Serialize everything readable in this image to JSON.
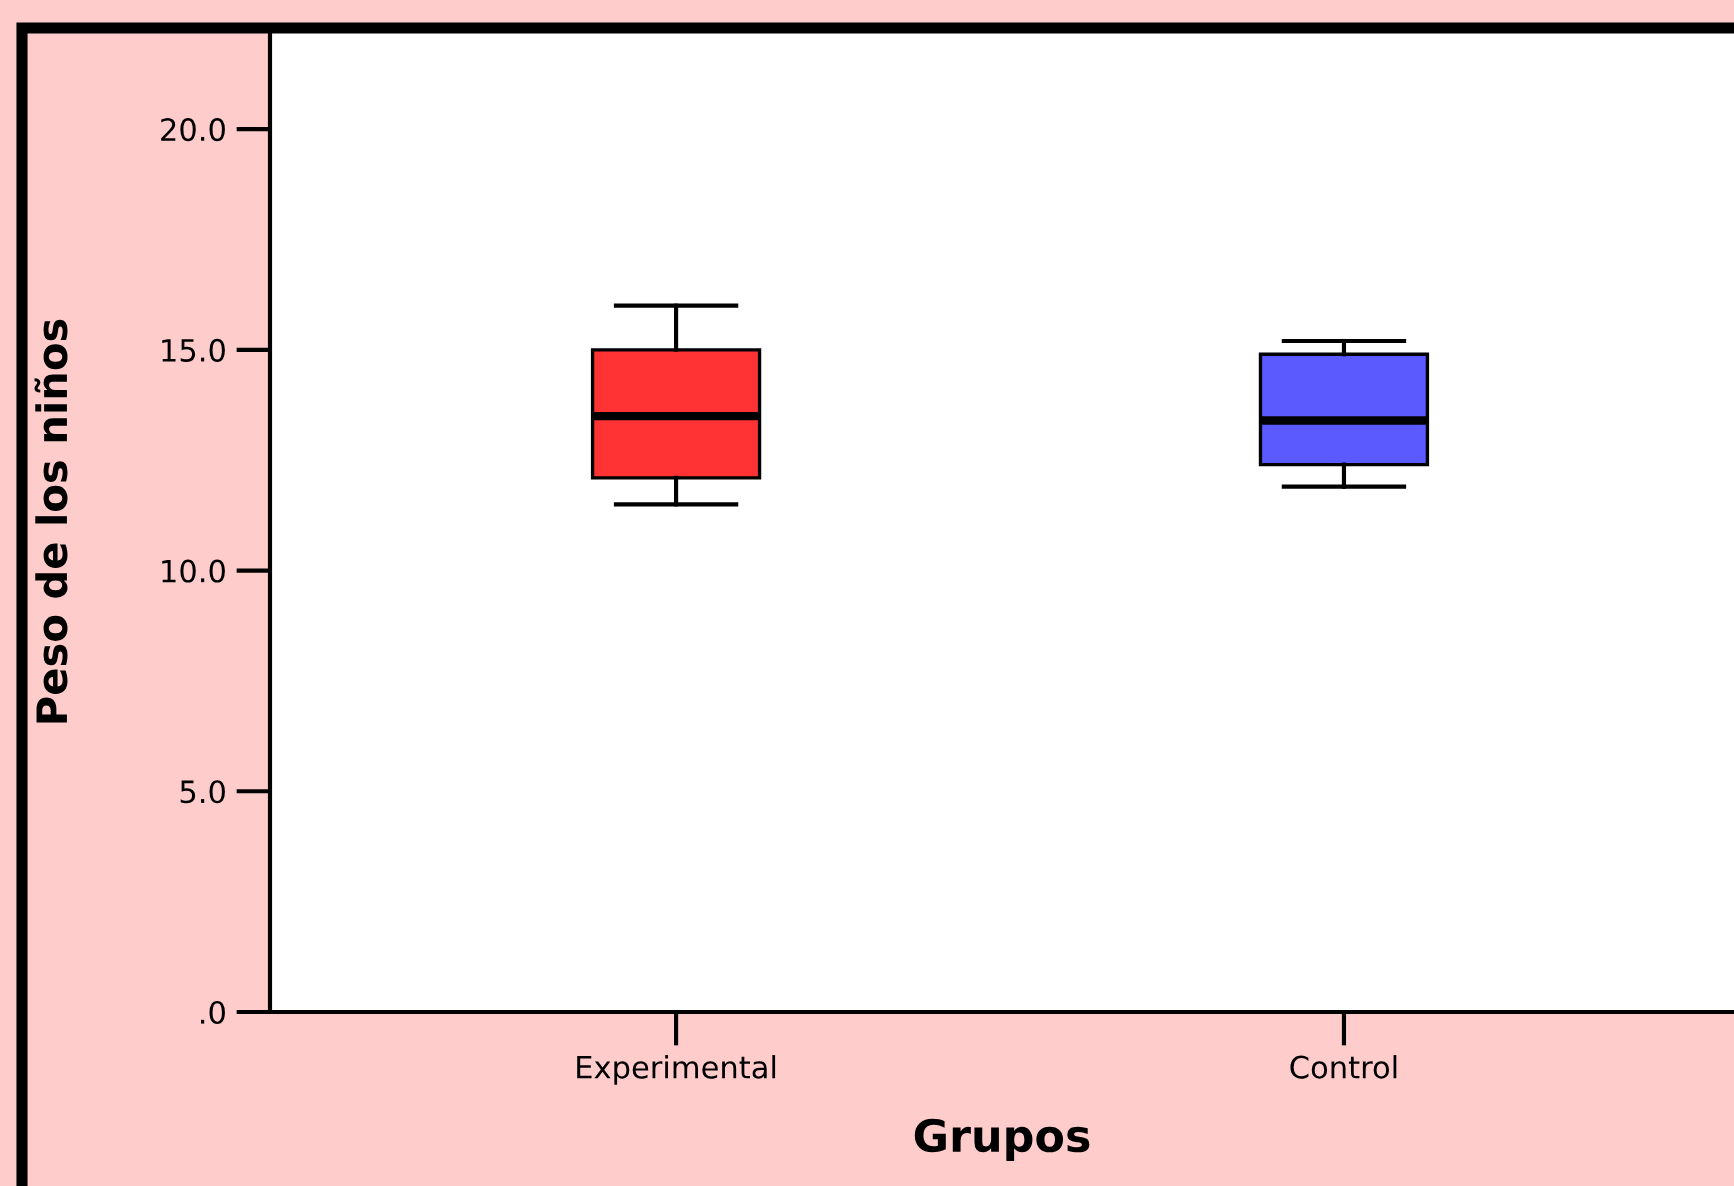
{
  "chart_data": {
    "type": "box",
    "xlabel": "Grupos",
    "ylabel": "Peso de los niños",
    "categories": [
      "Experimental",
      "Control"
    ],
    "boxes": [
      {
        "low": 11.5,
        "q1": 12.1,
        "median": 13.5,
        "q3": 15.0,
        "high": 16.0
      },
      {
        "low": 11.9,
        "q1": 12.4,
        "median": 13.4,
        "q3": 14.9,
        "high": 15.2
      }
    ],
    "colors": [
      "#ff3333",
      "#5a5aff"
    ],
    "ylim": [
      0,
      22.2
    ],
    "yticks": [
      {
        "value": 0,
        "label": ".0"
      },
      {
        "value": 5,
        "label": "5.0"
      },
      {
        "value": 10,
        "label": "10.0"
      },
      {
        "value": 15,
        "label": "15.0"
      },
      {
        "value": 20,
        "label": "20.0"
      }
    ],
    "grid": false
  }
}
